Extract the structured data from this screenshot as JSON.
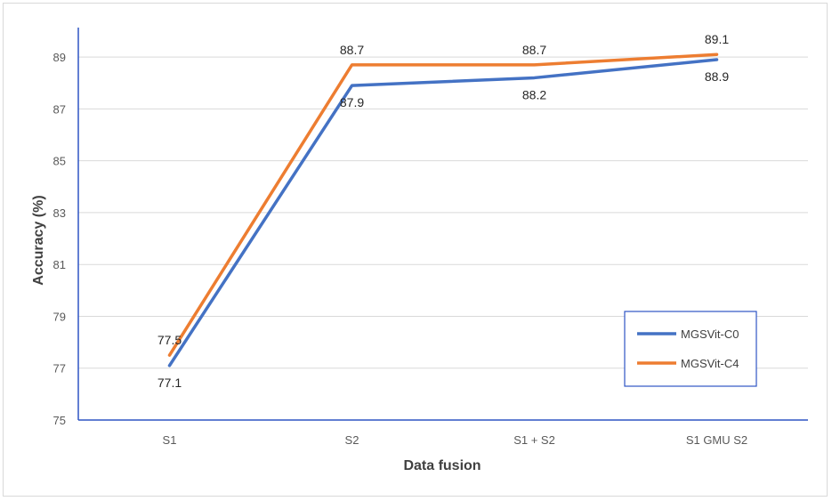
{
  "chart_data": {
    "type": "line",
    "title": "",
    "xlabel": "Data fusion",
    "ylabel": "Accuracy (%)",
    "categories": [
      "S1",
      "S2",
      "S1 + S2",
      "S1 GMU S2"
    ],
    "ylim": [
      75,
      90
    ],
    "yticks": [
      75,
      77,
      79,
      81,
      83,
      85,
      87,
      89
    ],
    "grid": true,
    "legend_position": "bottom-right",
    "series": [
      {
        "name": "MGSVit-C0",
        "color": "#4472c4",
        "values": [
          77.1,
          87.9,
          88.2,
          88.9
        ],
        "labels": [
          "77.1",
          "87.9",
          "88.2",
          "88.9"
        ],
        "label_side": "below"
      },
      {
        "name": "MGSVit-C4",
        "color": "#ed7d31",
        "values": [
          77.5,
          88.7,
          88.7,
          89.1
        ],
        "labels": [
          "77.5",
          "88.7",
          "88.7",
          "89.1"
        ],
        "label_side": "above"
      }
    ]
  }
}
